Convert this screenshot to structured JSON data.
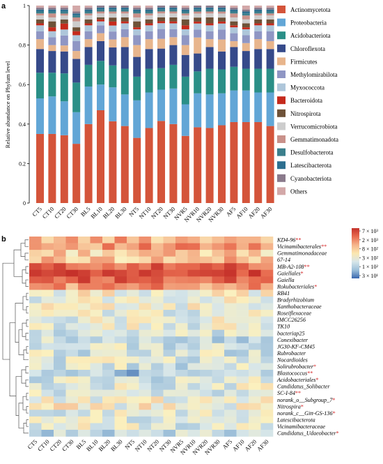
{
  "chart_data": [
    {
      "type": "bar",
      "stacked": true,
      "panel_label": "a",
      "ylabel": "Relative abundance on Phylum level",
      "ylim": [
        0,
        1
      ],
      "yticks": [
        "0",
        "0.2",
        "0.4",
        "0.6",
        "0.8",
        "1"
      ],
      "legend_position": "right",
      "categories": [
        "CT5",
        "CT10",
        "CT20",
        "CT30",
        "BL5",
        "BL10",
        "BL20",
        "BL30",
        "NT5",
        "NT10",
        "NT20",
        "NT30",
        "NVR5",
        "NVR10",
        "NVR20",
        "NVR30",
        "AF5",
        "AF10",
        "AF20",
        "AF30"
      ],
      "series": [
        {
          "name": "Actinomycetota",
          "color": "#d4543a",
          "values": [
            0.35,
            0.35,
            0.34,
            0.3,
            0.4,
            0.47,
            0.41,
            0.39,
            0.33,
            0.38,
            0.42,
            0.4,
            0.34,
            0.38,
            0.38,
            0.39,
            0.41,
            0.41,
            0.41,
            0.39
          ]
        },
        {
          "name": "Proteobacteria",
          "color": "#62a6d6",
          "values": [
            0.18,
            0.19,
            0.17,
            0.16,
            0.19,
            0.13,
            0.17,
            0.16,
            0.19,
            0.18,
            0.16,
            0.18,
            0.16,
            0.17,
            0.17,
            0.16,
            0.16,
            0.16,
            0.15,
            0.17
          ]
        },
        {
          "name": "Acidobacteriota",
          "color": "#2a8f87",
          "values": [
            0.13,
            0.12,
            0.14,
            0.15,
            0.11,
            0.12,
            0.11,
            0.13,
            0.12,
            0.12,
            0.11,
            0.12,
            0.14,
            0.11,
            0.13,
            0.12,
            0.12,
            0.11,
            0.12,
            0.12
          ]
        },
        {
          "name": "Chloroflexota",
          "color": "#364a8a",
          "values": [
            0.12,
            0.11,
            0.11,
            0.12,
            0.09,
            0.1,
            0.09,
            0.11,
            0.1,
            0.1,
            0.1,
            0.1,
            0.11,
            0.09,
            0.11,
            0.09,
            0.1,
            0.09,
            0.1,
            0.1
          ]
        },
        {
          "name": "Firmicutes",
          "color": "#e8b58c",
          "values": [
            0.05,
            0.03,
            0.03,
            0.04,
            0.04,
            0.04,
            0.04,
            0.05,
            0.06,
            0.05,
            0.05,
            0.04,
            0.05,
            0.08,
            0.04,
            0.06,
            0.03,
            0.04,
            0.05,
            0.04
          ]
        },
        {
          "name": "Methylomirabilota",
          "color": "#8f96c4",
          "values": [
            0.04,
            0.04,
            0.05,
            0.05,
            0.04,
            0.04,
            0.04,
            0.04,
            0.05,
            0.04,
            0.05,
            0.04,
            0.05,
            0.04,
            0.04,
            0.05,
            0.04,
            0.04,
            0.04,
            0.05
          ]
        },
        {
          "name": "Myxococcota",
          "color": "#aec6da",
          "values": [
            0.03,
            0.03,
            0.03,
            0.03,
            0.03,
            0.02,
            0.03,
            0.03,
            0.03,
            0.03,
            0.03,
            0.03,
            0.03,
            0.03,
            0.03,
            0.03,
            0.03,
            0.03,
            0.03,
            0.03
          ]
        },
        {
          "name": "Bacteroidota",
          "color": "#c52a1c",
          "values": [
            0.01,
            0.02,
            0.03,
            0.02,
            0.01,
            0.01,
            0.02,
            0.01,
            0.01,
            0.01,
            0.01,
            0.01,
            0.02,
            0.01,
            0.01,
            0.01,
            0.01,
            0.01,
            0.01,
            0.01
          ]
        },
        {
          "name": "Nitrospirota",
          "color": "#6e5238",
          "values": [
            0.02,
            0.03,
            0.02,
            0.02,
            0.02,
            0.01,
            0.02,
            0.02,
            0.03,
            0.02,
            0.02,
            0.02,
            0.03,
            0.02,
            0.03,
            0.02,
            0.02,
            0.02,
            0.02,
            0.02
          ]
        },
        {
          "name": "Verrucomicrobiota",
          "color": "#cdcdcd",
          "values": [
            0.02,
            0.02,
            0.02,
            0.03,
            0.02,
            0.02,
            0.02,
            0.02,
            0.02,
            0.02,
            0.02,
            0.02,
            0.02,
            0.02,
            0.02,
            0.02,
            0.02,
            0.02,
            0.02,
            0.02
          ]
        },
        {
          "name": "Gemmatimonadota",
          "color": "#c9918a",
          "values": [
            0.01,
            0.02,
            0.01,
            0.02,
            0.01,
            0.01,
            0.01,
            0.01,
            0.02,
            0.01,
            0.01,
            0.01,
            0.01,
            0.01,
            0.01,
            0.01,
            0.02,
            0.02,
            0.01,
            0.01
          ]
        },
        {
          "name": "Desulfobacterota",
          "color": "#3b7f8c",
          "values": [
            0.01,
            0.01,
            0.01,
            0.01,
            0.01,
            0.01,
            0.01,
            0.01,
            0.01,
            0.01,
            0.01,
            0.01,
            0.01,
            0.01,
            0.01,
            0.01,
            0.01,
            0.01,
            0.01,
            0.01
          ]
        },
        {
          "name": "Latescibacterota",
          "color": "#2d6f8f",
          "values": [
            0.01,
            0.01,
            0.01,
            0.01,
            0.01,
            0.01,
            0.01,
            0.01,
            0.01,
            0.01,
            0.01,
            0.01,
            0.01,
            0.01,
            0.01,
            0.01,
            0.01,
            0.01,
            0.01,
            0.01
          ]
        },
        {
          "name": "Cyanobacteriota",
          "color": "#8a7a8c",
          "values": [
            0.01,
            0.01,
            0.01,
            0.01,
            0.01,
            0.01,
            0.01,
            0.01,
            0.01,
            0.01,
            0.01,
            0.01,
            0.01,
            0.01,
            0.01,
            0.01,
            0.01,
            0.01,
            0.01,
            0.01
          ]
        },
        {
          "name": "Others",
          "color": "#d3a8a8",
          "values": [
            0.01,
            0.01,
            0.01,
            0.03,
            0.01,
            0.0,
            0.0,
            0.0,
            0.01,
            0.01,
            0.0,
            0.0,
            0.01,
            0.0,
            0.0,
            0.0,
            0.01,
            0.02,
            0.01,
            0.01
          ]
        }
      ]
    },
    {
      "type": "heatmap",
      "panel_label": "b",
      "dendrogram": "left",
      "columns": [
        "CT5",
        "CT10",
        "CT20",
        "CT30",
        "BL5",
        "BL10",
        "BL20",
        "BL30",
        "NT5",
        "NT10",
        "NT20",
        "NT30",
        "NVR5",
        "NVR10",
        "NVR20",
        "NVR30",
        "AF5",
        "AF10",
        "AF20",
        "AF30"
      ],
      "rows": [
        {
          "name": "KD4-96",
          "stars": "**"
        },
        {
          "name": "Vicinamibacterales",
          "stars": "**"
        },
        {
          "name": "Gemmatimonadaceae",
          "stars": ""
        },
        {
          "name": "67-14",
          "stars": ""
        },
        {
          "name": "MB-A2-108",
          "stars": "**"
        },
        {
          "name": "Gaiellales",
          "stars": "*"
        },
        {
          "name": "Gaiella",
          "stars": ""
        },
        {
          "name": "Rokubacteriales",
          "stars": "*"
        },
        {
          "name": "RB41",
          "stars": ""
        },
        {
          "name": "Bradyrhizobium",
          "stars": ""
        },
        {
          "name": "Xanthobacteraceae",
          "stars": ""
        },
        {
          "name": "Roseiflexaceae",
          "stars": ""
        },
        {
          "name": "IMCC26256",
          "stars": ""
        },
        {
          "name": "TK10",
          "stars": ""
        },
        {
          "name": "bacteriap25",
          "stars": ""
        },
        {
          "name": "Conexibacter",
          "stars": ""
        },
        {
          "name": "JG30-KF-CM45",
          "stars": ""
        },
        {
          "name": "Rubrobacter",
          "stars": ""
        },
        {
          "name": "Nocardioides",
          "stars": ""
        },
        {
          "name": "Solirubrobacter",
          "stars": "*"
        },
        {
          "name": "Blastococcus",
          "stars": "**"
        },
        {
          "name": "Acidobacteriales",
          "stars": "*"
        },
        {
          "name": "Candidatus_Solibacter",
          "stars": ""
        },
        {
          "name": "SC-I-84",
          "stars": "**"
        },
        {
          "name": "norank_o__Subgroup_7",
          "stars": "*"
        },
        {
          "name": "Nitrospira",
          "stars": "*"
        },
        {
          "name": "norank_c__Gitt-GS-136",
          "stars": "*"
        },
        {
          "name": "Latescibacterota",
          "stars": ""
        },
        {
          "name": "Vicinamibacteraceae",
          "stars": ""
        },
        {
          "name": "Candidatus_Udaeobacter",
          "stars": "*"
        }
      ],
      "row_levels": [
        0.63,
        0.68,
        0.55,
        0.58,
        0.82,
        0.9,
        0.85,
        0.7,
        0.42,
        0.4,
        0.4,
        0.38,
        0.39,
        0.37,
        0.3,
        0.28,
        0.32,
        0.33,
        0.35,
        0.32,
        0.22,
        0.34,
        0.36,
        0.33,
        0.4,
        0.42,
        0.36,
        0.35,
        0.36,
        0.3
      ],
      "colorbar": {
        "labels": [
          "7 × 10³",
          "2 × 10³",
          "8 × 10²",
          "3 × 10²",
          "1 × 10²",
          "3 × 10¹"
        ],
        "colors": [
          "#c5312a",
          "#e86b4f",
          "#f5b38a",
          "#fbe7b0",
          "#d7e6e9",
          "#9cbfd9",
          "#3a67ae"
        ]
      },
      "star_color": "#d62728"
    }
  ]
}
